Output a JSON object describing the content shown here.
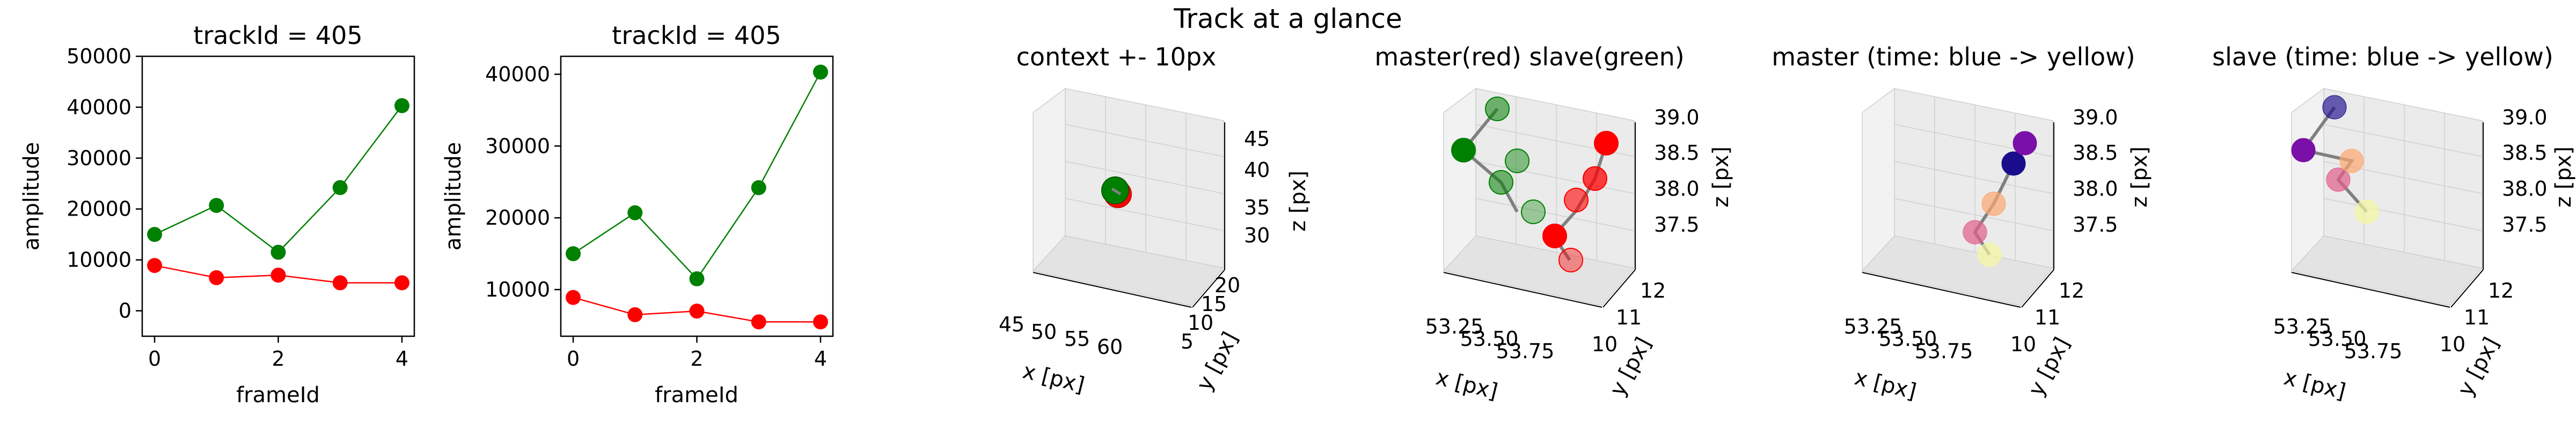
{
  "figure": {
    "suptitle": "Track at a glance"
  },
  "chart_data": [
    {
      "type": "line",
      "title": "trackId = 405",
      "xlabel": "frameId",
      "ylabel": "amplitude",
      "x": [
        0,
        1,
        2,
        3,
        4
      ],
      "xticks": [
        "0",
        "2",
        "4"
      ],
      "yticks": [
        "0",
        "10000",
        "20000",
        "30000",
        "40000",
        "50000"
      ],
      "ylim": [
        -5000,
        50000
      ],
      "grid": false,
      "series": [
        {
          "color": "#008000",
          "values": [
            15000,
            20700,
            11500,
            24200,
            40300
          ]
        },
        {
          "color": "#ff0000",
          "values": [
            8900,
            6500,
            7000,
            5500,
            5500
          ]
        }
      ]
    },
    {
      "type": "line",
      "title": "trackId = 405",
      "xlabel": "frameId",
      "ylabel": "amplitude",
      "x": [
        0,
        1,
        2,
        3,
        4
      ],
      "xticks": [
        "0",
        "2",
        "4"
      ],
      "yticks": [
        "10000",
        "20000",
        "30000",
        "40000"
      ],
      "ylim": [
        3500,
        42500
      ],
      "grid": false,
      "series": [
        {
          "color": "#008000",
          "values": [
            15000,
            20700,
            11500,
            24200,
            40300
          ]
        },
        {
          "color": "#ff0000",
          "values": [
            8900,
            6500,
            7000,
            5500,
            5500
          ]
        }
      ]
    },
    {
      "type": "scatter3d",
      "title": "context +- 10px",
      "xlabel": "x [px]",
      "ylabel": "y [px]",
      "zlabel": "z [px]",
      "xticks": [
        "45",
        "50",
        "55",
        "60"
      ],
      "yticks": [
        "5",
        "10",
        "15",
        "20"
      ],
      "zticks": [
        "30",
        "35",
        "40",
        "45"
      ],
      "markers": [
        {
          "color": "#008000"
        },
        {
          "color": "#ff0000"
        }
      ]
    },
    {
      "type": "scatter3d",
      "title": "master(red) slave(green)",
      "xlabel": "x [px]",
      "ylabel": "y [px]",
      "zlabel": "z [px]",
      "xticks": [
        "53.25",
        "53.50",
        "53.75"
      ],
      "yticks": [
        "10",
        "11",
        "12"
      ],
      "zticks": [
        "37.5",
        "38.0",
        "38.5",
        "39.0"
      ],
      "markers": [
        {
          "color": "#008000"
        },
        {
          "color": "#ff0000"
        }
      ]
    },
    {
      "type": "scatter3d",
      "title": "master (time: blue -> yellow)",
      "xlabel": "x [px]",
      "ylabel": "y [px]",
      "zlabel": "z [px]",
      "xticks": [
        "53.25",
        "53.50",
        "53.75"
      ],
      "yticks": [
        "10",
        "11",
        "12"
      ],
      "zticks": [
        "37.5",
        "38.0",
        "38.5",
        "39.0"
      ],
      "colormap": [
        "#1a0d8c",
        "#7b10a8",
        "#e0608a",
        "#fca870",
        "#f5f8a0"
      ]
    },
    {
      "type": "scatter3d",
      "title": "slave (time: blue -> yellow)",
      "xlabel": "x [px]",
      "ylabel": "y [px]",
      "zlabel": "z [px]",
      "xticks": [
        "53.25",
        "53.50",
        "53.75"
      ],
      "yticks": [
        "10",
        "11",
        "12"
      ],
      "zticks": [
        "37.5",
        "38.0",
        "38.5",
        "39.0"
      ],
      "colormap": [
        "#1a0d8c",
        "#7b10a8",
        "#e0608a",
        "#fca870",
        "#f5f8a0"
      ]
    }
  ]
}
